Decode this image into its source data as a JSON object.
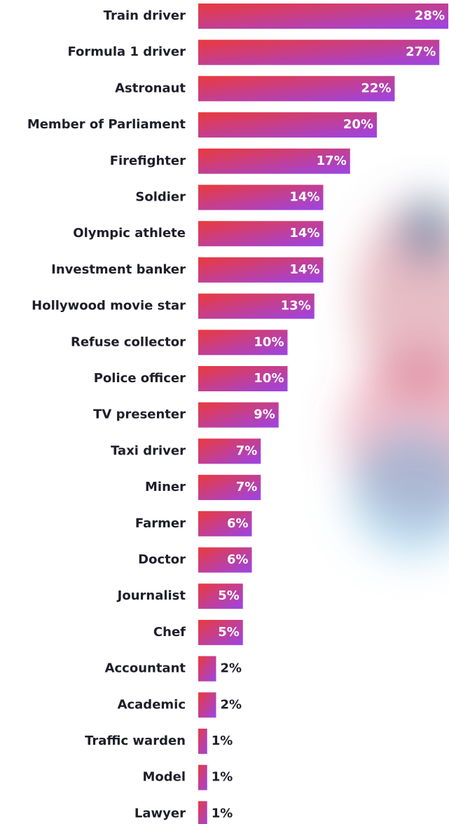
{
  "chart_data": {
    "type": "bar",
    "orientation": "horizontal",
    "categories": [
      "Train driver",
      "Formula 1 driver",
      "Astronaut",
      "Member of Parliament",
      "Firefighter",
      "Soldier",
      "Olympic athlete",
      "Investment banker",
      "Hollywood movie star",
      "Refuse collector",
      "Police officer",
      "TV presenter",
      "Taxi driver",
      "Miner",
      "Farmer",
      "Doctor",
      "Journalist",
      "Chef",
      "Accountant",
      "Academic",
      "Traffic warden",
      "Model",
      "Lawyer"
    ],
    "values": [
      28,
      27,
      22,
      20,
      17,
      14,
      14,
      14,
      13,
      10,
      10,
      9,
      7,
      7,
      6,
      6,
      5,
      5,
      2,
      2,
      1,
      1,
      1
    ],
    "value_labels": [
      "28%",
      "27%",
      "22%",
      "20%",
      "17%",
      "14%",
      "14%",
      "14%",
      "13%",
      "10%",
      "10%",
      "9%",
      "7%",
      "7%",
      "6%",
      "6%",
      "5%",
      "5%",
      "2%",
      "2%",
      "1%",
      "1%",
      "1%"
    ],
    "colors": [
      "#ea3a3c",
      "#9c44e6"
    ]
  }
}
